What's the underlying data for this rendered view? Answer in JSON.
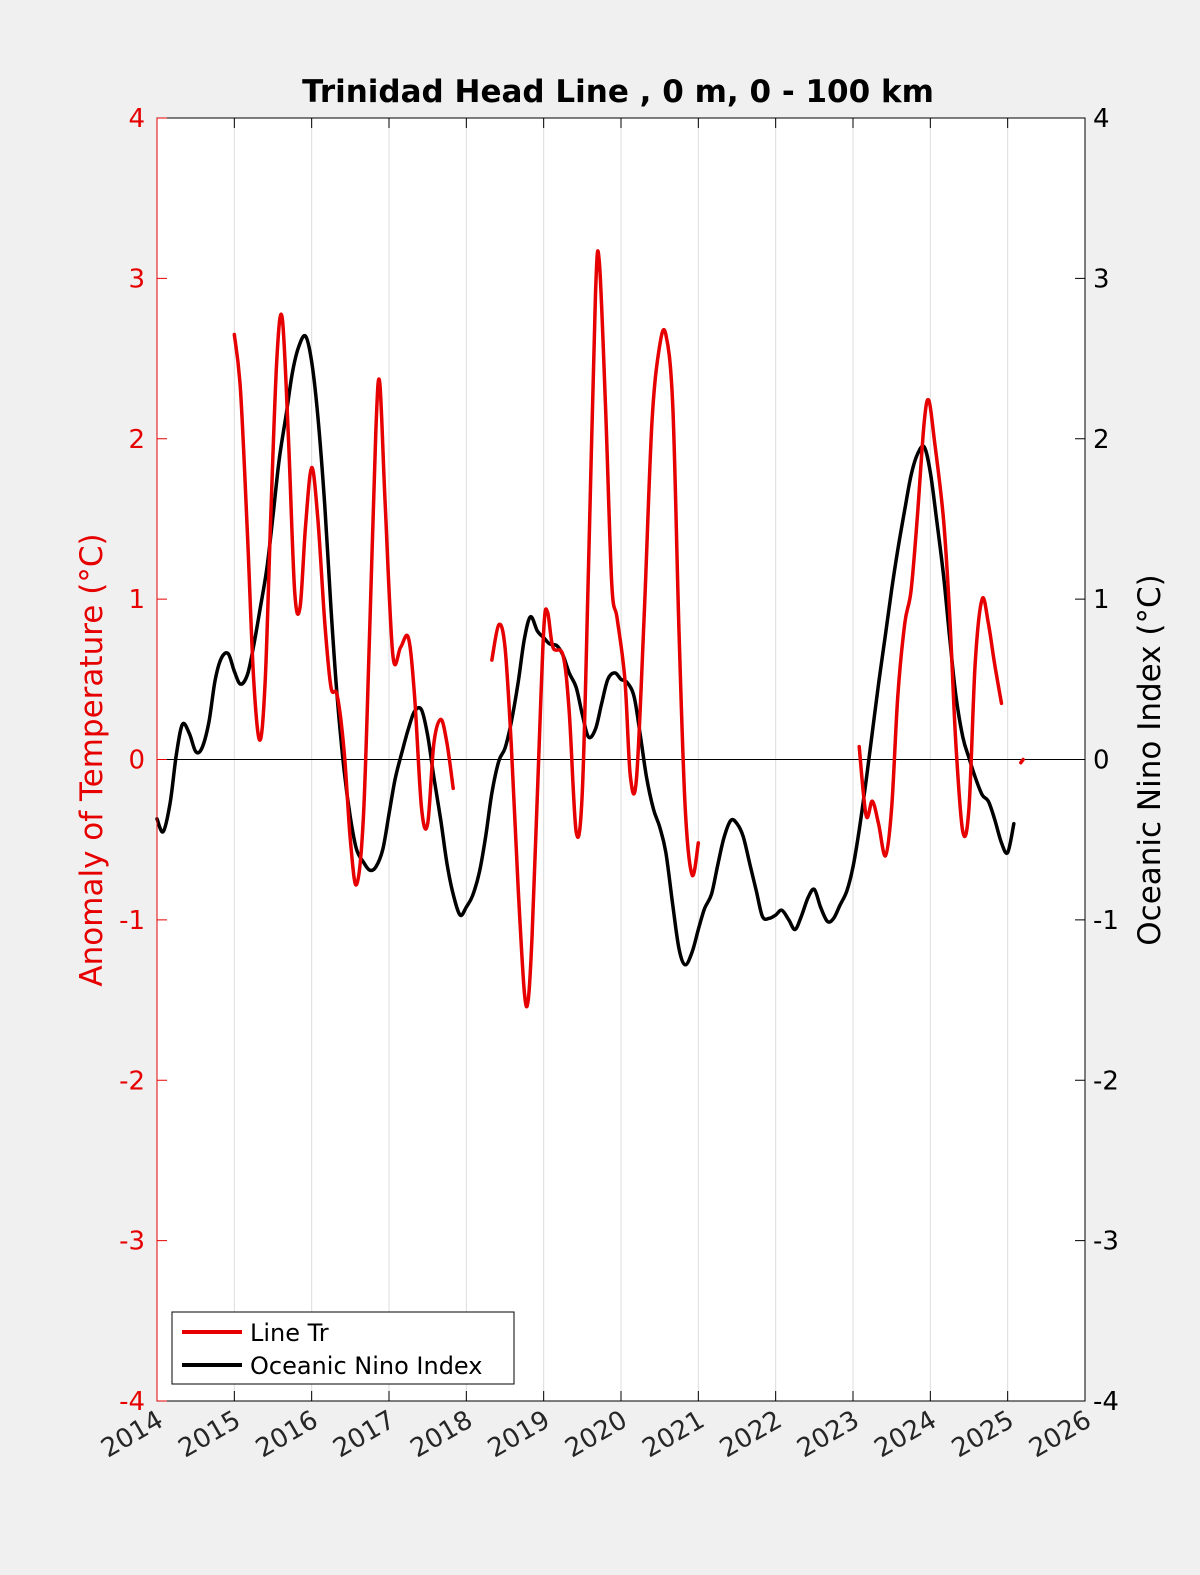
{
  "chart_data": {
    "type": "line",
    "title": "Trinidad Head Line , 0 m, 0 - 100 km",
    "xlabel": "",
    "ylabel_left": "Anomaly of Temperature (°C)",
    "ylabel_right": "Oceanic Nino Index (°C)",
    "xlim": [
      2014,
      2026
    ],
    "ylim_left": [
      -4,
      4
    ],
    "ylim_right": [
      -4,
      4
    ],
    "x_ticks": [
      "2014",
      "2015",
      "2016",
      "2017",
      "2018",
      "2019",
      "2020",
      "2021",
      "2022",
      "2023",
      "2024",
      "2025",
      "2026"
    ],
    "y_ticks_left": [
      "4",
      "3",
      "2",
      "1",
      "0",
      "-1",
      "-2",
      "-3",
      "-4"
    ],
    "y_ticks_right": [
      "4",
      "3",
      "2",
      "1",
      "0",
      "-1",
      "-2",
      "-3",
      "-4"
    ],
    "grid": "vertical lines at x ticks",
    "zero_line": true,
    "legend_position": "bottom-left",
    "colors": {
      "line_tr": "#e60000",
      "oni": "#000000",
      "left_axis": "#e60000",
      "right_axis": "#000000",
      "grid": "#dcdcdc",
      "plot_background": "#ffffff",
      "figure_background": "#f0f0f0"
    },
    "series": [
      {
        "name": "Line Tr",
        "axis": "left",
        "color": "#e60000",
        "segments": [
          [
            [
              2015.0,
              2.65
            ],
            [
              2015.08,
              2.3
            ],
            [
              2015.17,
              1.4
            ],
            [
              2015.25,
              0.5
            ],
            [
              2015.33,
              0.12
            ],
            [
              2015.4,
              0.5
            ],
            [
              2015.47,
              1.5
            ],
            [
              2015.55,
              2.5
            ],
            [
              2015.62,
              2.75
            ],
            [
              2015.7,
              2.0
            ],
            [
              2015.78,
              1.05
            ],
            [
              2015.85,
              0.95
            ],
            [
              2015.92,
              1.45
            ],
            [
              2016.0,
              1.82
            ],
            [
              2016.08,
              1.5
            ],
            [
              2016.17,
              0.85
            ],
            [
              2016.25,
              0.45
            ],
            [
              2016.33,
              0.4
            ],
            [
              2016.42,
              0.05
            ],
            [
              2016.5,
              -0.5
            ],
            [
              2016.58,
              -0.78
            ],
            [
              2016.67,
              -0.35
            ],
            [
              2016.75,
              0.8
            ],
            [
              2016.83,
              2.05
            ],
            [
              2016.88,
              2.35
            ],
            [
              2016.95,
              1.6
            ],
            [
              2017.05,
              0.65
            ],
            [
              2017.15,
              0.7
            ],
            [
              2017.25,
              0.76
            ],
            [
              2017.33,
              0.4
            ],
            [
              2017.42,
              -0.3
            ],
            [
              2017.5,
              -0.4
            ],
            [
              2017.58,
              0.1
            ],
            [
              2017.67,
              0.25
            ],
            [
              2017.75,
              0.1
            ],
            [
              2017.83,
              -0.18
            ]
          ],
          [
            [
              2018.33,
              0.62
            ],
            [
              2018.42,
              0.84
            ],
            [
              2018.5,
              0.7
            ],
            [
              2018.58,
              0.1
            ],
            [
              2018.67,
              -0.8
            ],
            [
              2018.75,
              -1.45
            ],
            [
              2018.8,
              -1.5
            ],
            [
              2018.85,
              -1.1
            ],
            [
              2018.92,
              -0.2
            ],
            [
              2019.0,
              0.8
            ],
            [
              2019.05,
              0.92
            ],
            [
              2019.12,
              0.7
            ],
            [
              2019.25,
              0.65
            ],
            [
              2019.33,
              0.3
            ],
            [
              2019.42,
              -0.45
            ],
            [
              2019.5,
              -0.2
            ],
            [
              2019.58,
              1.2
            ],
            [
              2019.67,
              2.9
            ],
            [
              2019.72,
              3.1
            ],
            [
              2019.8,
              2.2
            ],
            [
              2019.88,
              1.1
            ],
            [
              2019.95,
              0.88
            ],
            [
              2020.05,
              0.5
            ],
            [
              2020.12,
              -0.1
            ],
            [
              2020.2,
              -0.12
            ],
            [
              2020.3,
              0.9
            ],
            [
              2020.4,
              2.1
            ],
            [
              2020.5,
              2.58
            ],
            [
              2020.58,
              2.65
            ],
            [
              2020.67,
              2.2
            ],
            [
              2020.75,
              0.8
            ],
            [
              2020.83,
              -0.3
            ],
            [
              2020.92,
              -0.72
            ],
            [
              2021.0,
              -0.52
            ]
          ],
          [
            [
              2023.08,
              0.08
            ],
            [
              2023.17,
              -0.35
            ],
            [
              2023.25,
              -0.26
            ],
            [
              2023.33,
              -0.4
            ],
            [
              2023.42,
              -0.6
            ],
            [
              2023.5,
              -0.3
            ],
            [
              2023.58,
              0.4
            ],
            [
              2023.67,
              0.85
            ],
            [
              2023.75,
              1.05
            ],
            [
              2023.83,
              1.5
            ],
            [
              2023.92,
              2.1
            ],
            [
              2023.98,
              2.24
            ],
            [
              2024.05,
              2.0
            ],
            [
              2024.17,
              1.5
            ],
            [
              2024.25,
              0.9
            ],
            [
              2024.33,
              0.1
            ],
            [
              2024.42,
              -0.45
            ],
            [
              2024.5,
              -0.3
            ],
            [
              2024.58,
              0.6
            ],
            [
              2024.67,
              1.0
            ],
            [
              2024.75,
              0.85
            ],
            [
              2024.83,
              0.6
            ],
            [
              2024.92,
              0.35
            ]
          ],
          [
            [
              2025.17,
              -0.02
            ],
            [
              2025.2,
              0.0
            ]
          ]
        ]
      },
      {
        "name": "Oceanic Nino Index",
        "axis": "right",
        "color": "#000000",
        "segments": [
          [
            [
              2014.0,
              -0.37
            ],
            [
              2014.08,
              -0.45
            ],
            [
              2014.17,
              -0.27
            ],
            [
              2014.25,
              0.03
            ],
            [
              2014.33,
              0.22
            ],
            [
              2014.42,
              0.16
            ],
            [
              2014.5,
              0.05
            ],
            [
              2014.58,
              0.07
            ],
            [
              2014.67,
              0.23
            ],
            [
              2014.75,
              0.49
            ],
            [
              2014.83,
              0.63
            ],
            [
              2014.92,
              0.66
            ],
            [
              2015.0,
              0.55
            ],
            [
              2015.08,
              0.47
            ],
            [
              2015.17,
              0.53
            ],
            [
              2015.25,
              0.71
            ],
            [
              2015.33,
              0.93
            ],
            [
              2015.42,
              1.19
            ],
            [
              2015.5,
              1.52
            ],
            [
              2015.58,
              1.87
            ],
            [
              2015.67,
              2.15
            ],
            [
              2015.75,
              2.41
            ],
            [
              2015.83,
              2.57
            ],
            [
              2015.92,
              2.64
            ],
            [
              2016.0,
              2.48
            ],
            [
              2016.08,
              2.14
            ],
            [
              2016.17,
              1.58
            ],
            [
              2016.25,
              0.94
            ],
            [
              2016.33,
              0.39
            ],
            [
              2016.42,
              -0.07
            ],
            [
              2016.5,
              -0.36
            ],
            [
              2016.58,
              -0.56
            ],
            [
              2016.67,
              -0.64
            ],
            [
              2016.75,
              -0.69
            ],
            [
              2016.83,
              -0.67
            ],
            [
              2016.92,
              -0.56
            ],
            [
              2017.0,
              -0.34
            ],
            [
              2017.08,
              -0.12
            ],
            [
              2017.17,
              0.05
            ],
            [
              2017.25,
              0.19
            ],
            [
              2017.33,
              0.3
            ],
            [
              2017.42,
              0.31
            ],
            [
              2017.5,
              0.15
            ],
            [
              2017.58,
              -0.11
            ],
            [
              2017.67,
              -0.38
            ],
            [
              2017.75,
              -0.65
            ],
            [
              2017.83,
              -0.84
            ],
            [
              2017.92,
              -0.97
            ],
            [
              2018.0,
              -0.92
            ],
            [
              2018.08,
              -0.85
            ],
            [
              2018.17,
              -0.7
            ],
            [
              2018.25,
              -0.48
            ],
            [
              2018.33,
              -0.21
            ],
            [
              2018.42,
              -0.01
            ],
            [
              2018.5,
              0.07
            ],
            [
              2018.58,
              0.23
            ],
            [
              2018.67,
              0.48
            ],
            [
              2018.75,
              0.75
            ],
            [
              2018.83,
              0.89
            ],
            [
              2018.92,
              0.8
            ],
            [
              2019.0,
              0.76
            ],
            [
              2019.08,
              0.72
            ],
            [
              2019.17,
              0.71
            ],
            [
              2019.25,
              0.65
            ],
            [
              2019.33,
              0.54
            ],
            [
              2019.42,
              0.45
            ],
            [
              2019.5,
              0.28
            ],
            [
              2019.58,
              0.14
            ],
            [
              2019.67,
              0.19
            ],
            [
              2019.75,
              0.35
            ],
            [
              2019.83,
              0.5
            ],
            [
              2019.92,
              0.54
            ],
            [
              2020.0,
              0.5
            ],
            [
              2020.08,
              0.48
            ],
            [
              2020.17,
              0.39
            ],
            [
              2020.25,
              0.15
            ],
            [
              2020.33,
              -0.11
            ],
            [
              2020.42,
              -0.31
            ],
            [
              2020.5,
              -0.42
            ],
            [
              2020.58,
              -0.58
            ],
            [
              2020.67,
              -0.91
            ],
            [
              2020.75,
              -1.18
            ],
            [
              2020.83,
              -1.28
            ],
            [
              2020.92,
              -1.2
            ],
            [
              2021.0,
              -1.06
            ],
            [
              2021.08,
              -0.93
            ],
            [
              2021.17,
              -0.84
            ],
            [
              2021.25,
              -0.66
            ],
            [
              2021.33,
              -0.49
            ],
            [
              2021.42,
              -0.38
            ],
            [
              2021.5,
              -0.4
            ],
            [
              2021.58,
              -0.48
            ],
            [
              2021.67,
              -0.66
            ],
            [
              2021.75,
              -0.82
            ],
            [
              2021.83,
              -0.98
            ],
            [
              2021.92,
              -0.99
            ],
            [
              2022.0,
              -0.97
            ],
            [
              2022.08,
              -0.94
            ],
            [
              2022.17,
              -1.0
            ],
            [
              2022.25,
              -1.06
            ],
            [
              2022.33,
              -0.98
            ],
            [
              2022.42,
              -0.86
            ],
            [
              2022.5,
              -0.81
            ],
            [
              2022.58,
              -0.92
            ],
            [
              2022.67,
              -1.01
            ],
            [
              2022.75,
              -0.99
            ],
            [
              2022.83,
              -0.91
            ],
            [
              2022.92,
              -0.82
            ],
            [
              2023.0,
              -0.67
            ],
            [
              2023.08,
              -0.44
            ],
            [
              2023.17,
              -0.13
            ],
            [
              2023.25,
              0.17
            ],
            [
              2023.33,
              0.47
            ],
            [
              2023.42,
              0.78
            ],
            [
              2023.5,
              1.06
            ],
            [
              2023.58,
              1.31
            ],
            [
              2023.67,
              1.56
            ],
            [
              2023.75,
              1.77
            ],
            [
              2023.83,
              1.9
            ],
            [
              2023.92,
              1.95
            ],
            [
              2024.0,
              1.79
            ],
            [
              2024.08,
              1.5
            ],
            [
              2024.17,
              1.15
            ],
            [
              2024.25,
              0.76
            ],
            [
              2024.33,
              0.4
            ],
            [
              2024.42,
              0.14
            ],
            [
              2024.5,
              0.01
            ],
            [
              2024.58,
              -0.11
            ],
            [
              2024.67,
              -0.22
            ],
            [
              2024.75,
              -0.26
            ],
            [
              2024.83,
              -0.37
            ],
            [
              2024.92,
              -0.52
            ],
            [
              2025.0,
              -0.58
            ],
            [
              2025.08,
              -0.4
            ]
          ]
        ]
      }
    ]
  },
  "legend": [
    {
      "label": "Line Tr",
      "color": "#e60000"
    },
    {
      "label": "Oceanic Nino Index",
      "color": "#000000"
    }
  ]
}
